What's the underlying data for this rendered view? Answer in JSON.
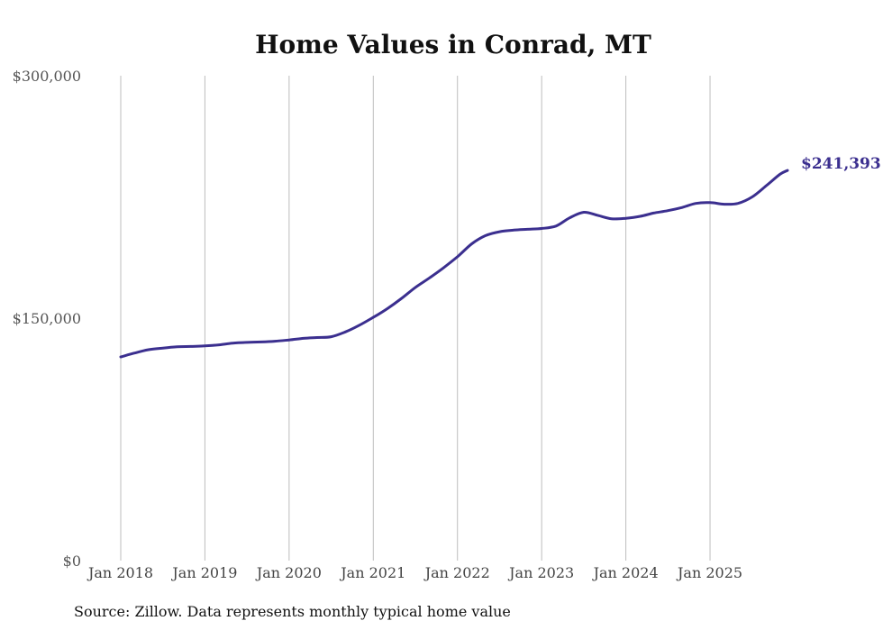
{
  "chart_data": {
    "type": "line",
    "title": "Home Values in Conrad, MT",
    "xlabel": "",
    "ylabel": "",
    "ylim": [
      0,
      300000
    ],
    "y_ticks": [
      {
        "value": 0,
        "label": "$0"
      },
      {
        "value": 150000,
        "label": "$150,000"
      },
      {
        "value": 300000,
        "label": "$300,000"
      }
    ],
    "x_ticks": [
      {
        "value": 2018,
        "label": "Jan 2018"
      },
      {
        "value": 2019,
        "label": "Jan 2019"
      },
      {
        "value": 2020,
        "label": "Jan 2020"
      },
      {
        "value": 2021,
        "label": "Jan 2021"
      },
      {
        "value": 2022,
        "label": "Jan 2022"
      },
      {
        "value": 2023,
        "label": "Jan 2023"
      },
      {
        "value": 2024,
        "label": "Jan 2024"
      },
      {
        "value": 2025,
        "label": "Jan 2025"
      }
    ],
    "xlim": [
      2018,
      2025.92
    ],
    "grid": "vertical",
    "series": [
      {
        "name": "Typical home value",
        "color": "#3b2f8f",
        "x": [
          2018.0,
          2018.17,
          2018.33,
          2018.5,
          2018.67,
          2018.83,
          2019.0,
          2019.17,
          2019.33,
          2019.5,
          2019.67,
          2019.83,
          2020.0,
          2020.17,
          2020.33,
          2020.5,
          2020.67,
          2020.83,
          2021.0,
          2021.17,
          2021.33,
          2021.5,
          2021.67,
          2021.83,
          2022.0,
          2022.17,
          2022.33,
          2022.5,
          2022.67,
          2022.83,
          2023.0,
          2023.17,
          2023.33,
          2023.5,
          2023.67,
          2023.83,
          2024.0,
          2024.17,
          2024.33,
          2024.5,
          2024.67,
          2024.83,
          2025.0,
          2025.17,
          2025.33,
          2025.5,
          2025.67,
          2025.83,
          2025.92
        ],
        "values": [
          126000,
          128500,
          130500,
          131500,
          132300,
          132500,
          132800,
          133500,
          134500,
          135000,
          135300,
          135700,
          136500,
          137500,
          138000,
          138500,
          141500,
          145500,
          150500,
          156000,
          162000,
          169000,
          175000,
          181000,
          188000,
          196000,
          201000,
          203500,
          204500,
          205000,
          205500,
          207000,
          212000,
          215500,
          213500,
          211500,
          211800,
          213000,
          215000,
          216500,
          218500,
          221000,
          221500,
          220500,
          221000,
          225000,
          232000,
          239000,
          241393
        ]
      }
    ],
    "end_label": "$241,393",
    "source": "Source: Zillow. Data represents monthly typical home value"
  }
}
